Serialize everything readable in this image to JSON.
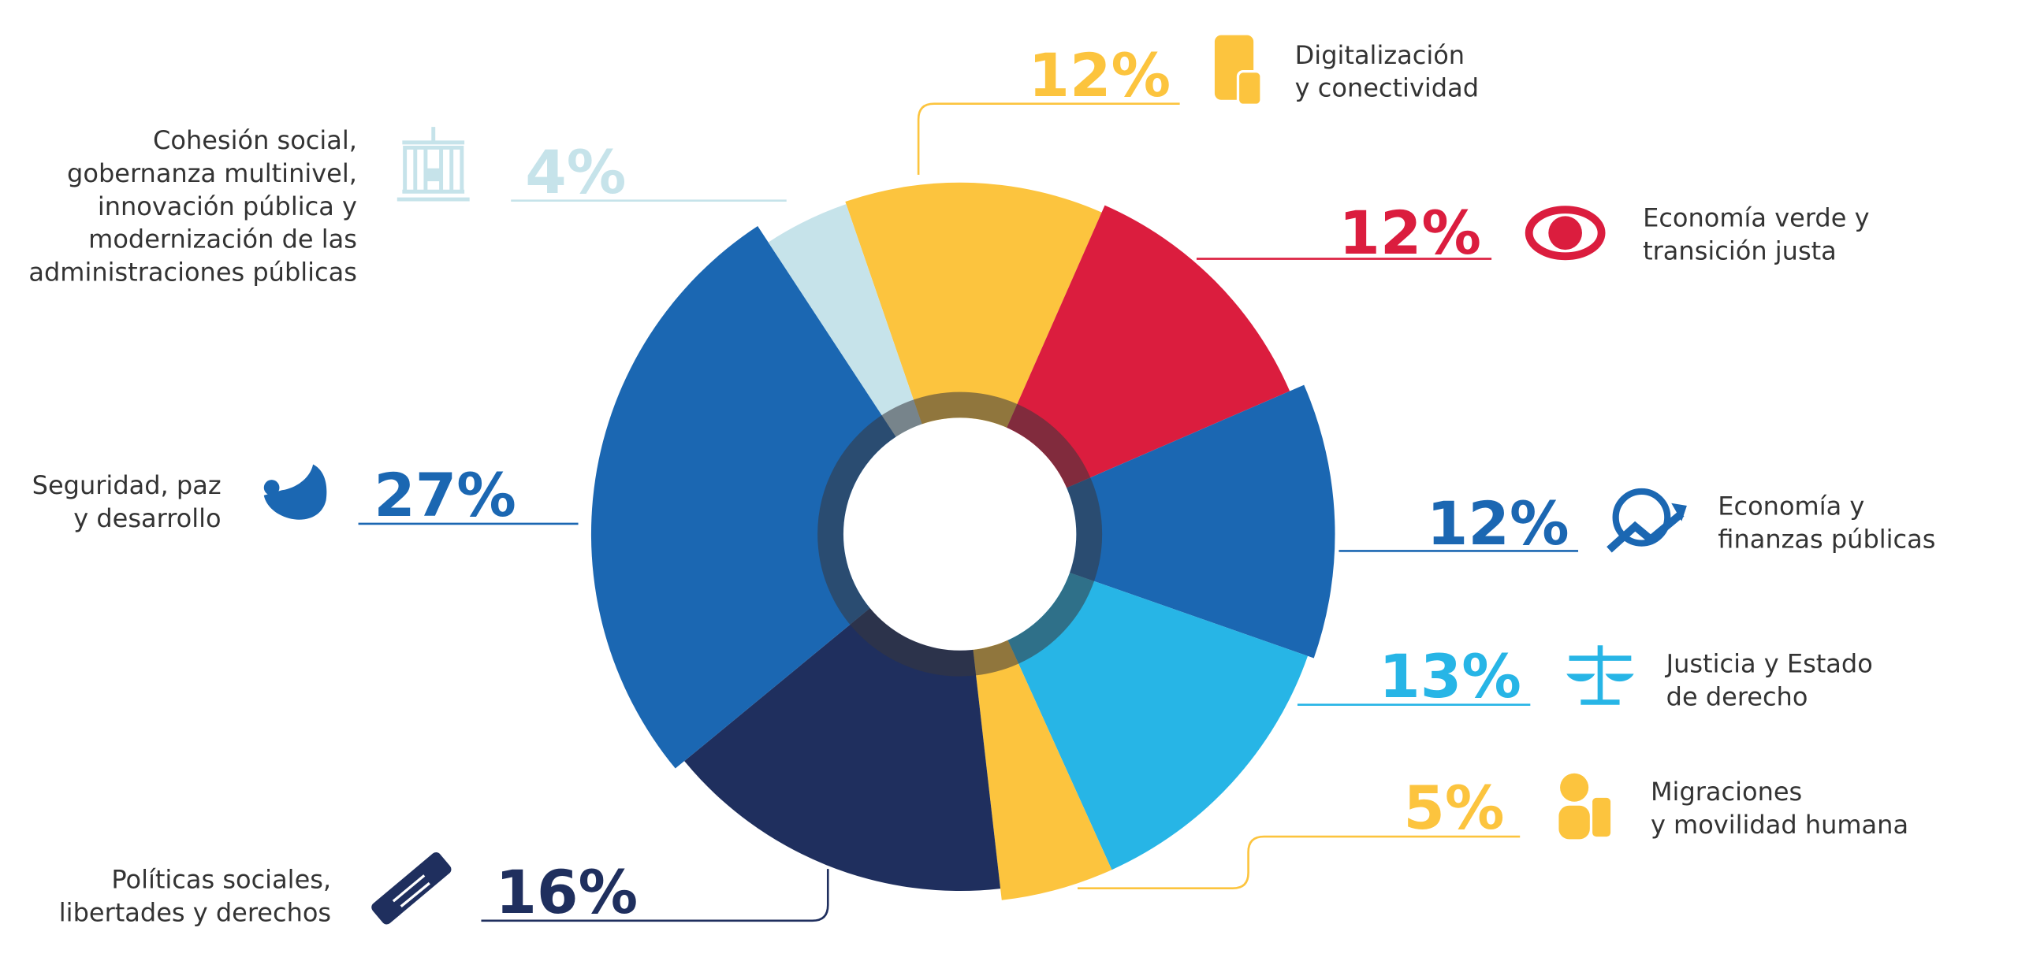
{
  "chart_data": {
    "type": "donut",
    "categories": [
      [
        "Digitalización",
        "y conectividad"
      ],
      [
        "Economía verde y",
        "transición justa"
      ],
      [
        "Economía y",
        "finanzas públicas"
      ],
      [
        "Justicia y Estado",
        "de derecho"
      ],
      [
        "Migraciones",
        "y movilidad humana"
      ],
      [
        "Políticas sociales,",
        "libertades y derechos"
      ],
      [
        "Seguridad, paz",
        "y desarrollo"
      ],
      [
        "Cohesión social,",
        "gobernanza multinivel,",
        "innovación pública y",
        "modernización de las",
        "administraciones públicas"
      ]
    ],
    "values": [
      12,
      12,
      12,
      13,
      5,
      16,
      27,
      4
    ],
    "value_labels": [
      "12%",
      "12%",
      "12%",
      "13%",
      "5%",
      "16%",
      "27%",
      "4%"
    ],
    "colors": [
      "#fcc43e",
      "#db1d3e",
      "#1b67b2",
      "#27b5e6",
      "#fcc43e",
      "#1f2f5e",
      "#1b67b2",
      "#c6e3ea"
    ]
  }
}
